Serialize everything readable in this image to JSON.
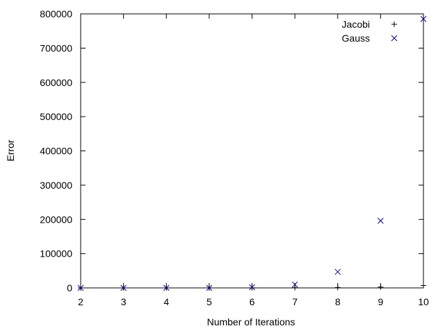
{
  "chart_data": {
    "type": "scatter",
    "title": "",
    "xlabel": "Number of Iterations",
    "ylabel": "Error",
    "xlim": [
      2,
      10
    ],
    "ylim": [
      0,
      800000
    ],
    "x_ticks": [
      2,
      3,
      4,
      5,
      6,
      7,
      8,
      9,
      10
    ],
    "y_ticks": [
      0,
      100000,
      200000,
      300000,
      400000,
      500000,
      600000,
      700000,
      800000
    ],
    "x_tick_labels": [
      "2",
      "3",
      "4",
      "5",
      "6",
      "7",
      "8",
      "9",
      "10"
    ],
    "y_tick_labels": [
      "0",
      "100000",
      "200000",
      "300000",
      "400000",
      "500000",
      "600000",
      "700000",
      "800000"
    ],
    "grid": false,
    "legend_position": "top-right",
    "series": [
      {
        "name": "Jacobi",
        "marker": "plus",
        "color": "#000000",
        "x": [
          2,
          3,
          4,
          5,
          6,
          7,
          8,
          9,
          10
        ],
        "y": [
          0,
          0,
          0,
          100,
          300,
          600,
          1200,
          2400,
          7000
        ]
      },
      {
        "name": "Gauss",
        "marker": "cross",
        "color": "#00008b",
        "x": [
          2,
          3,
          4,
          5,
          6,
          7,
          8,
          9,
          10
        ],
        "y": [
          0,
          0,
          0,
          0,
          2000,
          10000,
          47000,
          196000,
          785000
        ]
      }
    ]
  }
}
